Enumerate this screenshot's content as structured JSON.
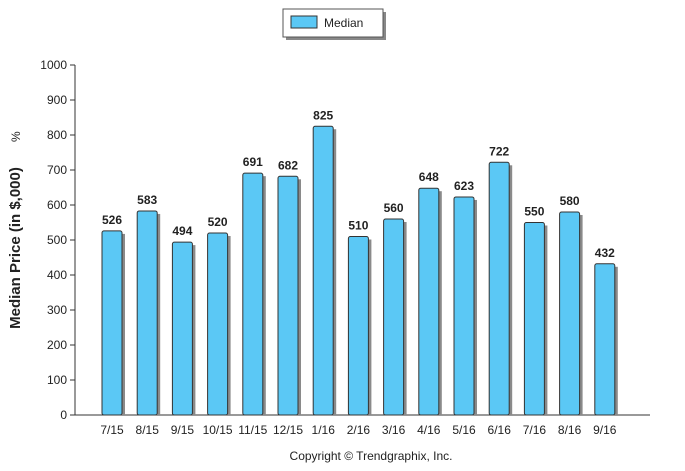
{
  "chart_data": {
    "type": "bar",
    "categories": [
      "7/15",
      "8/15",
      "9/15",
      "10/15",
      "11/15",
      "12/15",
      "1/16",
      "2/16",
      "3/16",
      "4/16",
      "5/16",
      "6/16",
      "7/16",
      "8/16",
      "9/16"
    ],
    "series": [
      {
        "name": "Median",
        "values": [
          526,
          583,
          494,
          520,
          691,
          682,
          825,
          510,
          560,
          648,
          623,
          722,
          550,
          580,
          432
        ],
        "color": "#5bc8f5"
      }
    ],
    "ylabel": "Median Price (in $,000)",
    "ylabel_suffix": "%",
    "xlabel": "",
    "ylim": [
      0,
      1000
    ],
    "yticks": [
      0,
      100,
      200,
      300,
      400,
      500,
      600,
      700,
      800,
      900,
      1000
    ],
    "grid": false,
    "legend_position": "top-center",
    "copyright": "Copyright © Trendgraphix, Inc."
  }
}
